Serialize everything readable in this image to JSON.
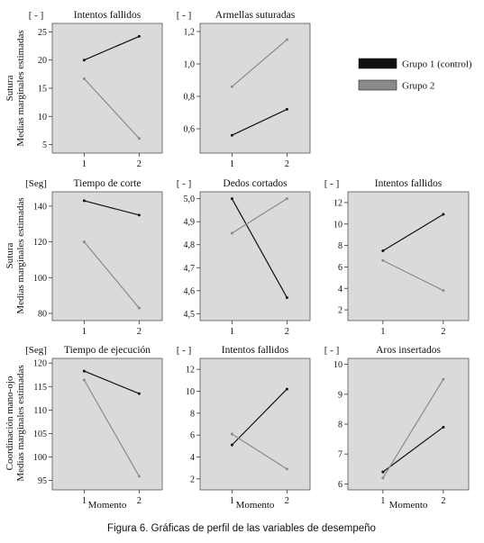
{
  "figure": {
    "caption": "Figura 6. Gráficas de perfil de las variables de desempeño",
    "x_axis_label": "Momento",
    "legend": [
      {
        "label": "Grupo 1 (control)",
        "color": "#111111"
      },
      {
        "label": "Grupo 2",
        "color": "#8a8a8a"
      }
    ],
    "row_labels": [
      {
        "line1": "Sutura",
        "line2": "Medias marginales estimadas"
      },
      {
        "line1": "Sutura",
        "line2": "Medias marginales estimadas"
      },
      {
        "line1": "Coordinación mano-ojo",
        "line2": "Medias marginales estimadas"
      }
    ],
    "colors": {
      "panel_bg": "#dadada",
      "series1": "#111111",
      "series2": "#8a8a8a"
    }
  },
  "chart_data": [
    {
      "type": "line",
      "title": "Intentos fallidos",
      "unit": "[ - ]",
      "x": [
        "1",
        "2"
      ],
      "yticks": [
        "5",
        "10",
        "15",
        "20",
        "25"
      ],
      "ylim": [
        3.5,
        26.5
      ],
      "series": [
        {
          "name": "Grupo 1 (control)",
          "values": [
            20.0,
            24.2
          ]
        },
        {
          "name": "Grupo 2",
          "values": [
            16.7,
            6.1
          ]
        }
      ]
    },
    {
      "type": "line",
      "title": "Armellas suturadas",
      "unit": "[ - ]",
      "x": [
        "1",
        "2"
      ],
      "yticks": [
        "0,6",
        "0,8",
        "1,0",
        "1,2"
      ],
      "ylim": [
        0.45,
        1.25
      ],
      "series": [
        {
          "name": "Grupo 1 (control)",
          "values": [
            0.56,
            0.72
          ]
        },
        {
          "name": "Grupo 2",
          "values": [
            0.86,
            1.15
          ]
        }
      ]
    },
    {
      "type": "line",
      "title": "Tiempo de corte",
      "unit": "[Seg]",
      "x": [
        "1",
        "2"
      ],
      "yticks": [
        "80",
        "100",
        "120",
        "140"
      ],
      "ylim": [
        76,
        148
      ],
      "series": [
        {
          "name": "Grupo 1 (control)",
          "values": [
            143,
            135
          ]
        },
        {
          "name": "Grupo 2",
          "values": [
            120,
            83
          ]
        }
      ]
    },
    {
      "type": "line",
      "title": "Dedos cortados",
      "unit": "[ - ]",
      "x": [
        "1",
        "2"
      ],
      "yticks": [
        "4,5",
        "4,6",
        "4,7",
        "4,8",
        "4,9",
        "5,0"
      ],
      "ylim": [
        4.47,
        5.03
      ],
      "series": [
        {
          "name": "Grupo 1 (control)",
          "values": [
            5.0,
            4.57
          ]
        },
        {
          "name": "Grupo 2",
          "values": [
            4.85,
            5.0
          ]
        }
      ]
    },
    {
      "type": "line",
      "title": "Intentos fallidos",
      "unit": "[ - ]",
      "x": [
        "1",
        "2"
      ],
      "yticks": [
        "2",
        "4",
        "6",
        "8",
        "10",
        "12"
      ],
      "ylim": [
        1.0,
        13.0
      ],
      "series": [
        {
          "name": "Grupo 1 (control)",
          "values": [
            7.5,
            10.9
          ]
        },
        {
          "name": "Grupo 2",
          "values": [
            6.6,
            3.8
          ]
        }
      ]
    },
    {
      "type": "line",
      "title": "Tiempo de ejecución",
      "unit": "[Seg]",
      "x": [
        "1",
        "2"
      ],
      "yticks": [
        "95",
        "100",
        "105",
        "110",
        "115",
        "120"
      ],
      "ylim": [
        93,
        121
      ],
      "series": [
        {
          "name": "Grupo 1 (control)",
          "values": [
            118.3,
            113.5
          ]
        },
        {
          "name": "Grupo 2",
          "values": [
            116.4,
            95.9
          ]
        }
      ]
    },
    {
      "type": "line",
      "title": "Intentos fallidos",
      "unit": "[ - ]",
      "x": [
        "1",
        "2"
      ],
      "yticks": [
        "2",
        "4",
        "6",
        "8",
        "10",
        "12"
      ],
      "ylim": [
        1.0,
        13.0
      ],
      "series": [
        {
          "name": "Grupo 1 (control)",
          "values": [
            5.1,
            10.2
          ]
        },
        {
          "name": "Grupo 2",
          "values": [
            6.1,
            2.9
          ]
        }
      ]
    },
    {
      "type": "line",
      "title": "Aros insertados",
      "unit": "[ - ]",
      "x": [
        "1",
        "2"
      ],
      "yticks": [
        "6",
        "7",
        "8",
        "9",
        "10"
      ],
      "ylim": [
        5.8,
        10.2
      ],
      "series": [
        {
          "name": "Grupo 1 (control)",
          "values": [
            6.4,
            7.9
          ]
        },
        {
          "name": "Grupo 2",
          "values": [
            6.2,
            9.5
          ]
        }
      ]
    }
  ]
}
